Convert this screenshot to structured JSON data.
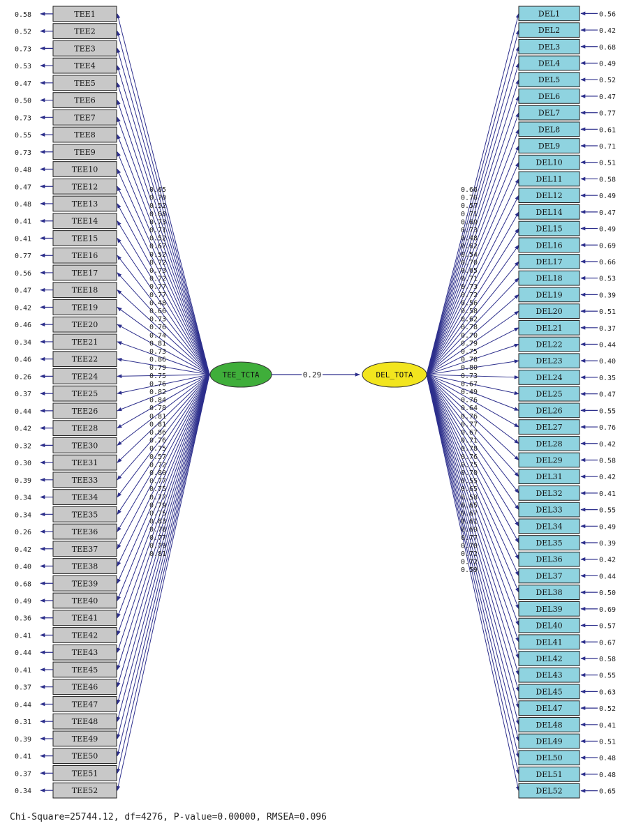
{
  "tee": {
    "factor": "TEE_TCTA",
    "color": "#3fae3a",
    "indicators": [
      "TEE1",
      "TEE2",
      "TEE3",
      "TEE4",
      "TEE5",
      "TEE6",
      "TEE7",
      "TEE8",
      "TEE9",
      "TEE10",
      "TEE12",
      "TEE13",
      "TEE14",
      "TEE15",
      "TEE16",
      "TEE17",
      "TEE18",
      "TEE19",
      "TEE20",
      "TEE21",
      "TEE22",
      "TEE24",
      "TEE25",
      "TEE26",
      "TEE28",
      "TEE30",
      "TEE31",
      "TEE33",
      "TEE34",
      "TEE35",
      "TEE36",
      "TEE37",
      "TEE38",
      "TEE39",
      "TEE40",
      "TEE41",
      "TEE42",
      "TEE43",
      "TEE45",
      "TEE46",
      "TEE47",
      "TEE48",
      "TEE49",
      "TEE50",
      "TEE51",
      "TEE52"
    ],
    "errors": [
      "0.58",
      "0.52",
      "0.73",
      "0.53",
      "0.47",
      "0.50",
      "0.73",
      "0.55",
      "0.73",
      "0.48",
      "0.47",
      "0.48",
      "0.41",
      "0.41",
      "0.77",
      "0.56",
      "0.47",
      "0.42",
      "0.46",
      "0.34",
      "0.46",
      "0.26",
      "0.37",
      "0.44",
      "0.42",
      "0.32",
      "0.30",
      "0.39",
      "0.34",
      "0.34",
      "0.26",
      "0.42",
      "0.40",
      "0.68",
      "0.49",
      "0.36",
      "0.41",
      "0.44",
      "0.41",
      "0.37",
      "0.44",
      "0.31",
      "0.39",
      "0.41",
      "0.37",
      "0.34"
    ],
    "loadings": [
      "0.65",
      "0.70",
      "0.52",
      "0.68",
      "0.73",
      "0.71",
      "0.52",
      "0.67",
      "0.52",
      "0.72",
      "0.73",
      "0.72",
      "0.77",
      "0.77",
      "0.48",
      "0.66",
      "0.73",
      "0.76",
      "0.74",
      "0.81",
      "0.73",
      "0.86",
      "0.79",
      "0.75",
      "0.76",
      "0.82",
      "0.84",
      "0.78",
      "0.81",
      "0.81",
      "0.86",
      "0.76",
      "0.75",
      "0.57",
      "0.72",
      "0.80",
      "0.77",
      "0.75",
      "0.77",
      "0.79",
      "0.75",
      "0.83",
      "0.78",
      "0.77",
      "0.79",
      "0.81"
    ]
  },
  "del": {
    "factor": "DEL_TOTA",
    "color": "#f2e51e",
    "indicators": [
      "DEL1",
      "DEL2",
      "DEL3",
      "DEL4",
      "DEL5",
      "DEL6",
      "DEL7",
      "DEL8",
      "DEL9",
      "DEL10",
      "DEL11",
      "DEL12",
      "DEL14",
      "DEL15",
      "DEL16",
      "DEL17",
      "DEL18",
      "DEL19",
      "DEL20",
      "DEL21",
      "DEL22",
      "DEL23",
      "DEL24",
      "DEL25",
      "DEL26",
      "DEL27",
      "DEL28",
      "DEL29",
      "DEL31",
      "DEL32",
      "DEL33",
      "DEL34",
      "DEL35",
      "DEL36",
      "DEL37",
      "DEL38",
      "DEL39",
      "DEL40",
      "DEL41",
      "DEL42",
      "DEL43",
      "DEL45",
      "DEL47",
      "DEL48",
      "DEL49",
      "DEL50",
      "DEL51",
      "DEL52"
    ],
    "errors": [
      "0.56",
      "0.42",
      "0.68",
      "0.49",
      "0.52",
      "0.47",
      "0.77",
      "0.61",
      "0.71",
      "0.51",
      "0.58",
      "0.49",
      "0.47",
      "0.49",
      "0.69",
      "0.66",
      "0.53",
      "0.39",
      "0.51",
      "0.37",
      "0.44",
      "0.40",
      "0.35",
      "0.47",
      "0.55",
      "0.76",
      "0.42",
      "0.58",
      "0.42",
      "0.41",
      "0.55",
      "0.49",
      "0.39",
      "0.42",
      "0.44",
      "0.50",
      "0.69",
      "0.57",
      "0.67",
      "0.58",
      "0.55",
      "0.63",
      "0.52",
      "0.41",
      "0.51",
      "0.48",
      "0.48",
      "0.65"
    ],
    "loadings": [
      "0.66",
      "0.76",
      "0.57",
      "0.71",
      "0.69",
      "0.73",
      "0.48",
      "0.62",
      "0.54",
      "0.70",
      "0.65",
      "0.71",
      "0.73",
      "0.72",
      "0.56",
      "0.58",
      "0.62",
      "0.78",
      "0.70",
      "0.79",
      "0.75",
      "0.78",
      "0.80",
      "0.73",
      "0.67",
      "0.49",
      "0.76",
      "0.64",
      "0.76",
      "0.77",
      "0.67",
      "0.71",
      "0.78",
      "0.76",
      "0.75",
      "0.70",
      "0.55",
      "0.65",
      "0.58",
      "0.65",
      "0.67",
      "0.61",
      "0.69",
      "0.77",
      "0.70",
      "0.72",
      "0.72",
      "0.59"
    ]
  },
  "path": {
    "value": "0.29"
  },
  "colors": {
    "line": "#2d2f8c",
    "tee_box": "#c8c8c8",
    "del_box": "#8fd3e0"
  },
  "fit": "Chi-Square=25744.12, df=4276, P-value=0.00000, RMSEA=0.096"
}
